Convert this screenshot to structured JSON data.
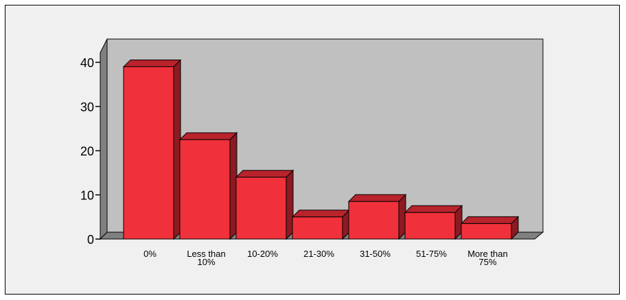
{
  "chart_data": {
    "type": "bar",
    "title": "",
    "xlabel": "",
    "ylabel": "",
    "categories": [
      [
        "0%"
      ],
      [
        "Less than",
        "10%"
      ],
      [
        "10-20%"
      ],
      [
        "21-30%"
      ],
      [
        "31-50%"
      ],
      [
        "51-75%"
      ],
      [
        "More than",
        "75%"
      ]
    ],
    "values": [
      39,
      22.5,
      14,
      5,
      8.5,
      6,
      3.5
    ],
    "ylim": [
      0,
      40
    ],
    "yticks": [
      "0",
      "10",
      "20",
      "30",
      "40"
    ],
    "grid": false,
    "legend": "none",
    "style": "3d"
  },
  "colors": {
    "page_background": "#f0f0f0",
    "plot_back_wall": "#c0c0c0",
    "plot_side_wall": "#808080",
    "bar_front": "#f0313b",
    "bar_top": "#b8232c",
    "bar_side": "#8c1a22",
    "outline": "#000000"
  }
}
